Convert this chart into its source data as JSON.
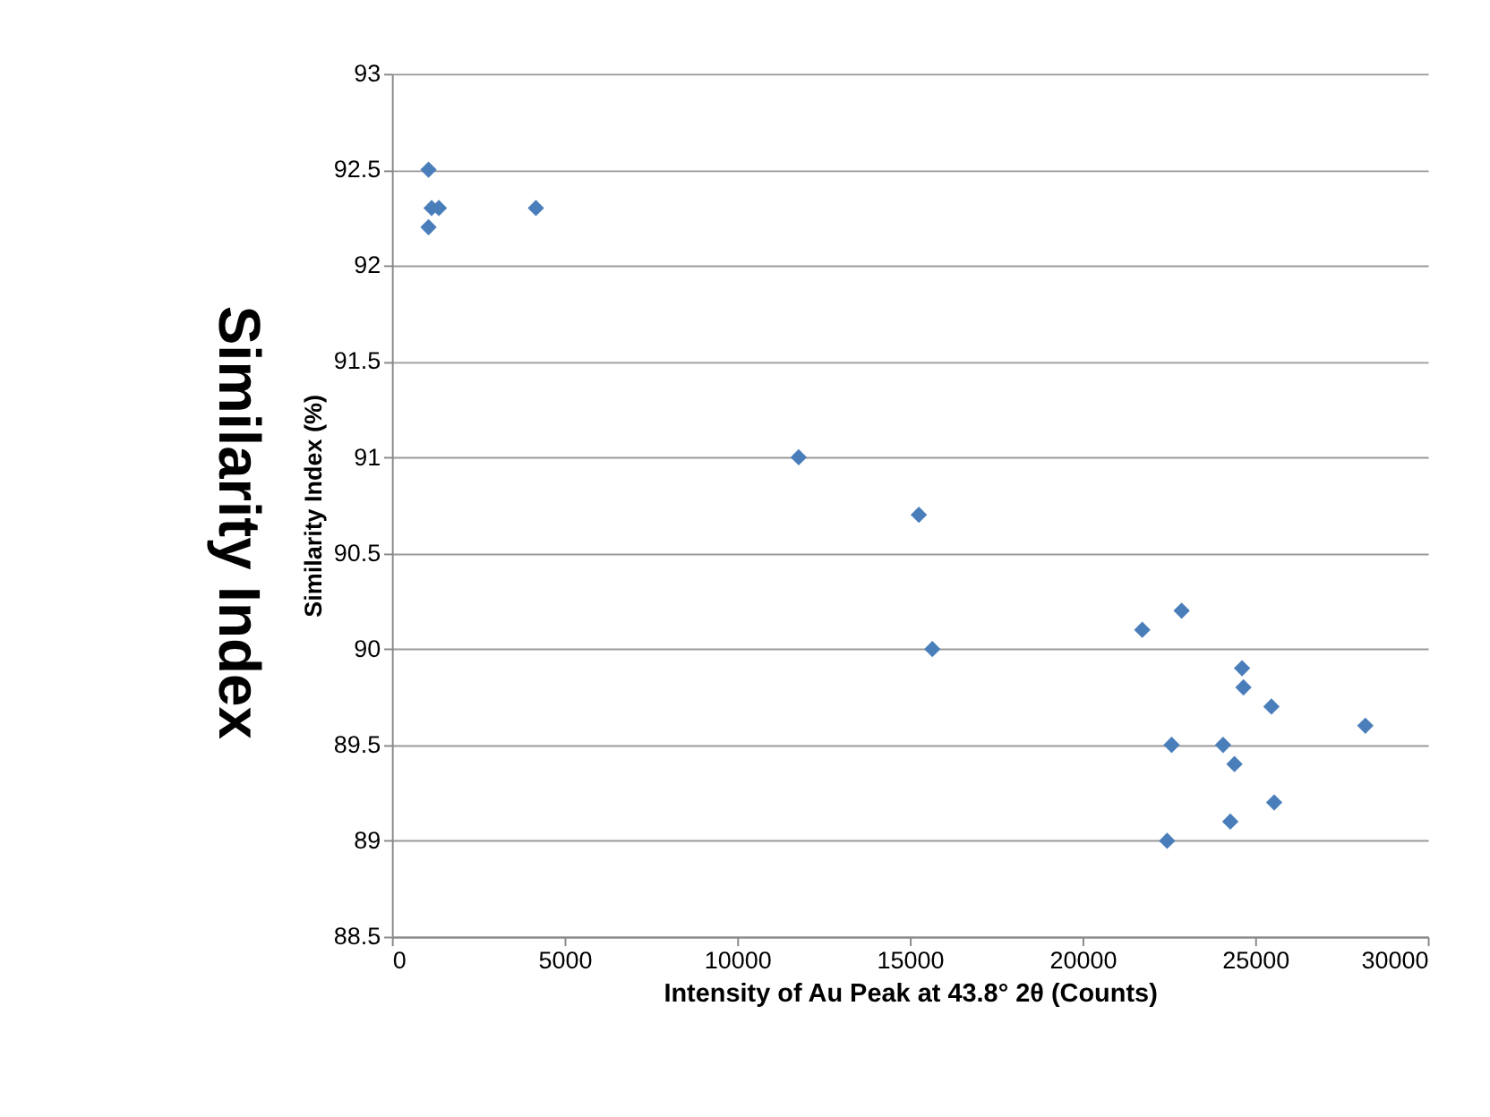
{
  "chart_data": {
    "type": "scatter",
    "xlabel": "Intensity of Au Peak at 43.8° 2θ (Counts)",
    "ylabel": "Similarity Index (%)",
    "annotations": [
      "Similarity Index"
    ],
    "x": [
      1060,
      1150,
      1060,
      1360,
      4170,
      11780,
      15260,
      15650,
      21730,
      22870,
      24620,
      24660,
      25470,
      28190,
      22580,
      24070,
      24400,
      25550,
      24280,
      22450
    ],
    "series": [
      {
        "color": "#4a7ebb",
        "values": [
          92.5,
          92.3,
          92.2,
          92.3,
          92.3,
          91.0,
          90.7,
          90.0,
          90.1,
          90.2,
          89.9,
          89.8,
          89.7,
          89.6,
          89.5,
          89.5,
          89.4,
          89.2,
          89.1,
          89.0
        ]
      }
    ],
    "xlim": [
      0,
      30000
    ],
    "xticks": [
      0,
      5000,
      10000,
      15000,
      20000,
      25000,
      30000
    ],
    "ylim": [
      88.5,
      93
    ],
    "yticks": [
      88.5,
      89,
      89.5,
      90,
      90.5,
      91,
      91.5,
      92,
      92.5,
      93
    ],
    "grid": "y",
    "marker": "diamond",
    "legend": false
  }
}
